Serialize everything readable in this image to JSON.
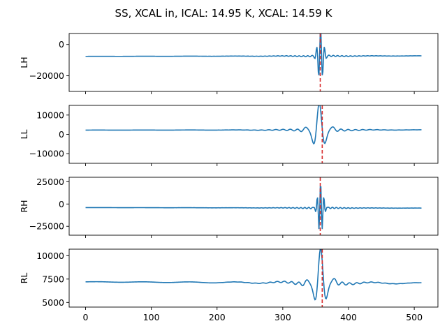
{
  "figure": {
    "title": "SS, XCAL in, ICAL: 14.95 K, XCAL: 14.59 K"
  },
  "chart_data": [
    {
      "type": "line",
      "ylabel": "LH",
      "ylim": [
        -30000,
        7000
      ],
      "yticks": [
        0,
        -20000
      ],
      "ytick_labels": [
        "0",
        "−20000"
      ],
      "xlim": [
        -25,
        536
      ],
      "marker_x": 357,
      "baseline": -7600,
      "baseline_end": -7300,
      "center": 357.5,
      "amplitude": 17000,
      "period": 6.0,
      "decay": 5.5,
      "lobe_amp": 550,
      "lobe_period": 6.5,
      "lobe_decay": 45,
      "line_color": "#1f77b4",
      "marker_color": "#d62728"
    },
    {
      "type": "line",
      "ylabel": "LL",
      "ylim": [
        -15000,
        15000
      ],
      "yticks": [
        10000,
        0,
        -10000
      ],
      "ytick_labels": [
        "10000",
        "0",
        "−10000"
      ],
      "xlim": [
        -25,
        536
      ],
      "marker_x": 360,
      "baseline": 2200,
      "baseline_end": 2300,
      "center": 355.5,
      "amplitude": 12500,
      "period": 20,
      "decay": 13,
      "lobe_amp": 1400,
      "lobe_period": 11,
      "lobe_decay": 34,
      "line_color": "#1f77b4",
      "marker_color": "#d62728"
    },
    {
      "type": "line",
      "ylabel": "RH",
      "ylim": [
        -35000,
        30000
      ],
      "yticks": [
        25000,
        0,
        -25000
      ],
      "ytick_labels": [
        "25000",
        "0",
        "−25000"
      ],
      "xlim": [
        -25,
        536
      ],
      "marker_x": 357,
      "baseline": -4000,
      "baseline_end": -4600,
      "center": 357.5,
      "amplitude": 28000,
      "period": 5.0,
      "decay": 5.5,
      "lobe_amp": 1200,
      "lobe_period": 6.0,
      "lobe_decay": 40,
      "line_color": "#1f77b4",
      "marker_color": "#d62728"
    },
    {
      "type": "line",
      "ylabel": "RL",
      "ylim": [
        4500,
        10700
      ],
      "yticks": [
        10000,
        7500,
        5000
      ],
      "ytick_labels": [
        "10000",
        "7500",
        "5000"
      ],
      "xlim": [
        -25,
        536
      ],
      "marker_x": 360,
      "baseline": 7200,
      "baseline_end": 7050,
      "center": 357.5,
      "amplitude": 3200,
      "period": 20,
      "decay": 13,
      "lobe_amp": 420,
      "lobe_period": 11,
      "lobe_decay": 34,
      "line_color": "#1f77b4",
      "marker_color": "#d62728"
    }
  ],
  "x_axis": {
    "ticks": [
      0,
      100,
      200,
      300,
      400,
      500
    ],
    "tick_labels": [
      "0",
      "100",
      "200",
      "300",
      "400",
      "500"
    ],
    "n_points": 512
  }
}
